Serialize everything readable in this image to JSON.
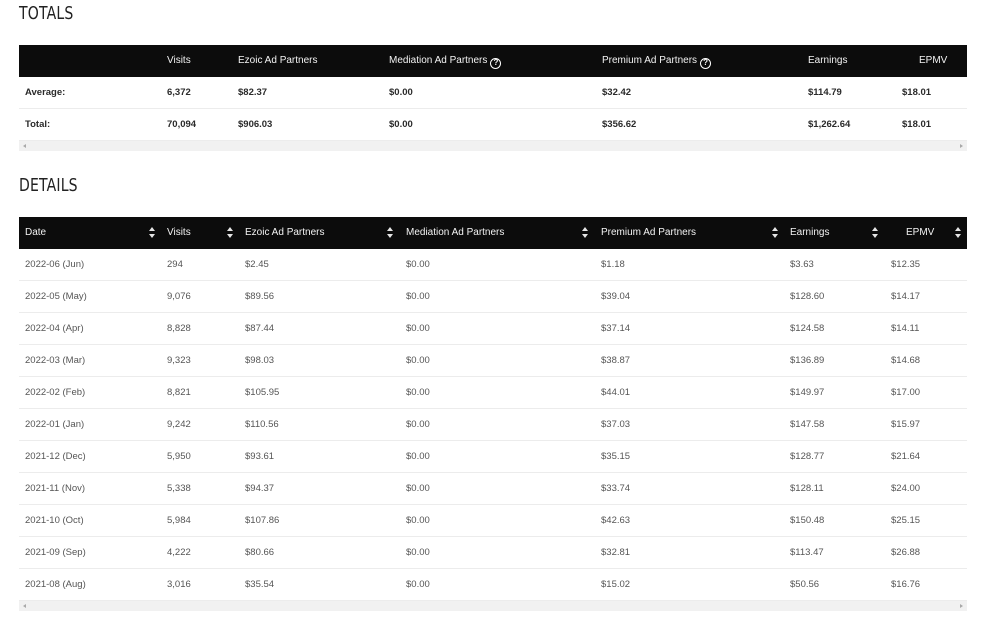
{
  "totals": {
    "title": "TOTALS",
    "headers": [
      "",
      "Visits",
      "Ezoic Ad Partners",
      "Mediation Ad Partners",
      "Premium Ad Partners",
      "Earnings",
      "EPMV"
    ],
    "rows": [
      [
        "Average:",
        "6,372",
        "$82.37",
        "$0.00",
        "$32.42",
        "$114.79",
        "$18.01"
      ],
      [
        "Total:",
        "70,094",
        "$906.03",
        "$0.00",
        "$356.62",
        "$1,262.64",
        "$18.01"
      ]
    ]
  },
  "details": {
    "title": "DETAILS",
    "headers": [
      "Date",
      "Visits",
      "Ezoic Ad Partners",
      "Mediation Ad Partners",
      "Premium Ad Partners",
      "Earnings",
      "EPMV"
    ],
    "rows": [
      [
        "2022-06 (Jun)",
        "294",
        "$2.45",
        "$0.00",
        "$1.18",
        "$3.63",
        "$12.35"
      ],
      [
        "2022-05 (May)",
        "9,076",
        "$89.56",
        "$0.00",
        "$39.04",
        "$128.60",
        "$14.17"
      ],
      [
        "2022-04 (Apr)",
        "8,828",
        "$87.44",
        "$0.00",
        "$37.14",
        "$124.58",
        "$14.11"
      ],
      [
        "2022-03 (Mar)",
        "9,323",
        "$98.03",
        "$0.00",
        "$38.87",
        "$136.89",
        "$14.68"
      ],
      [
        "2022-02 (Feb)",
        "8,821",
        "$105.95",
        "$0.00",
        "$44.01",
        "$149.97",
        "$17.00"
      ],
      [
        "2022-01 (Jan)",
        "9,242",
        "$110.56",
        "$0.00",
        "$37.03",
        "$147.58",
        "$15.97"
      ],
      [
        "2021-12 (Dec)",
        "5,950",
        "$93.61",
        "$0.00",
        "$35.15",
        "$128.77",
        "$21.64"
      ],
      [
        "2021-11 (Nov)",
        "5,338",
        "$94.37",
        "$0.00",
        "$33.74",
        "$128.11",
        "$24.00"
      ],
      [
        "2021-10 (Oct)",
        "5,984",
        "$107.86",
        "$0.00",
        "$42.63",
        "$150.48",
        "$25.15"
      ],
      [
        "2021-09 (Sep)",
        "4,222",
        "$80.66",
        "$0.00",
        "$32.81",
        "$113.47",
        "$26.88"
      ],
      [
        "2021-08 (Aug)",
        "3,016",
        "$35.54",
        "$0.00",
        "$15.02",
        "$50.56",
        "$16.76"
      ]
    ]
  },
  "icons": {
    "help": "help-circle-icon",
    "sort": "sort-arrows-icon"
  },
  "colors": {
    "header_bg": "#0c0c0c",
    "header_text": "#f3f3f3",
    "row_border": "#ececec"
  }
}
